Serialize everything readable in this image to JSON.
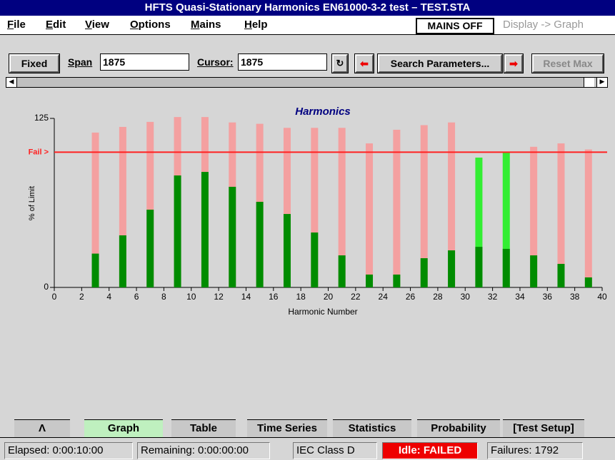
{
  "window": {
    "title": "HFTS Quasi-Stationary Harmonics EN61000-3-2 test – TEST.STA"
  },
  "menu": [
    "File",
    "Edit",
    "View",
    "Options",
    "Mains",
    "Help"
  ],
  "mains_status": "MAINS OFF",
  "display_mode": "Display -> Graph",
  "toolbar": {
    "fixed": "Fixed",
    "span_label": "Span",
    "span_value": "1875",
    "cursor_label": "Cursor:",
    "cursor_value": "1875",
    "search": "Search Parameters...",
    "reset": "Reset Max"
  },
  "chart_data": {
    "type": "bar",
    "title": "Harmonics",
    "x_label": "Harmonic Number",
    "y_label": "% of Limit",
    "x": [
      3,
      5,
      7,
      9,
      11,
      13,
      15,
      17,
      19,
      21,
      23,
      25,
      27,
      29,
      31,
      33,
      35,
      37,
      39
    ],
    "xlim": [
      0,
      40
    ],
    "xticks": [
      0,
      2,
      4,
      6,
      8,
      10,
      12,
      14,
      16,
      18,
      20,
      22,
      24,
      26,
      28,
      30,
      32,
      34,
      36,
      38,
      40
    ],
    "ylim": [
      0,
      125
    ],
    "yticks": [
      0,
      125
    ],
    "limit": {
      "value": 100,
      "label": "Fail >",
      "color": "#ff2020"
    },
    "series": [
      {
        "color": "#f4a0a0",
        "pass_color": "#33ee33",
        "values": [
          114.5,
          118.7,
          122.4,
          126,
          126,
          122,
          121,
          118,
          118,
          118,
          106.5,
          116.6,
          120,
          122,
          96,
          100,
          104,
          106.5,
          102
        ]
      },
      {
        "color": "#008c00",
        "values": [
          25,
          38.5,
          57.5,
          82.8,
          85.4,
          74.4,
          63.3,
          54.3,
          40.6,
          23.7,
          9.5,
          9.5,
          21.6,
          27.4,
          30,
          28.5,
          23.7,
          17.4,
          7.4
        ]
      }
    ]
  },
  "tabs": [
    "Λ",
    "Graph",
    "Table",
    "Time Series",
    "Statistics",
    "Probability",
    "[Test Setup]"
  ],
  "status": {
    "elapsed": "Elapsed: 0:00:10:00",
    "remaining": "Remaining: 0:00:00:00",
    "class": "IEC Class D",
    "state": "Idle: FAILED",
    "failures": "Failures: 1792"
  }
}
